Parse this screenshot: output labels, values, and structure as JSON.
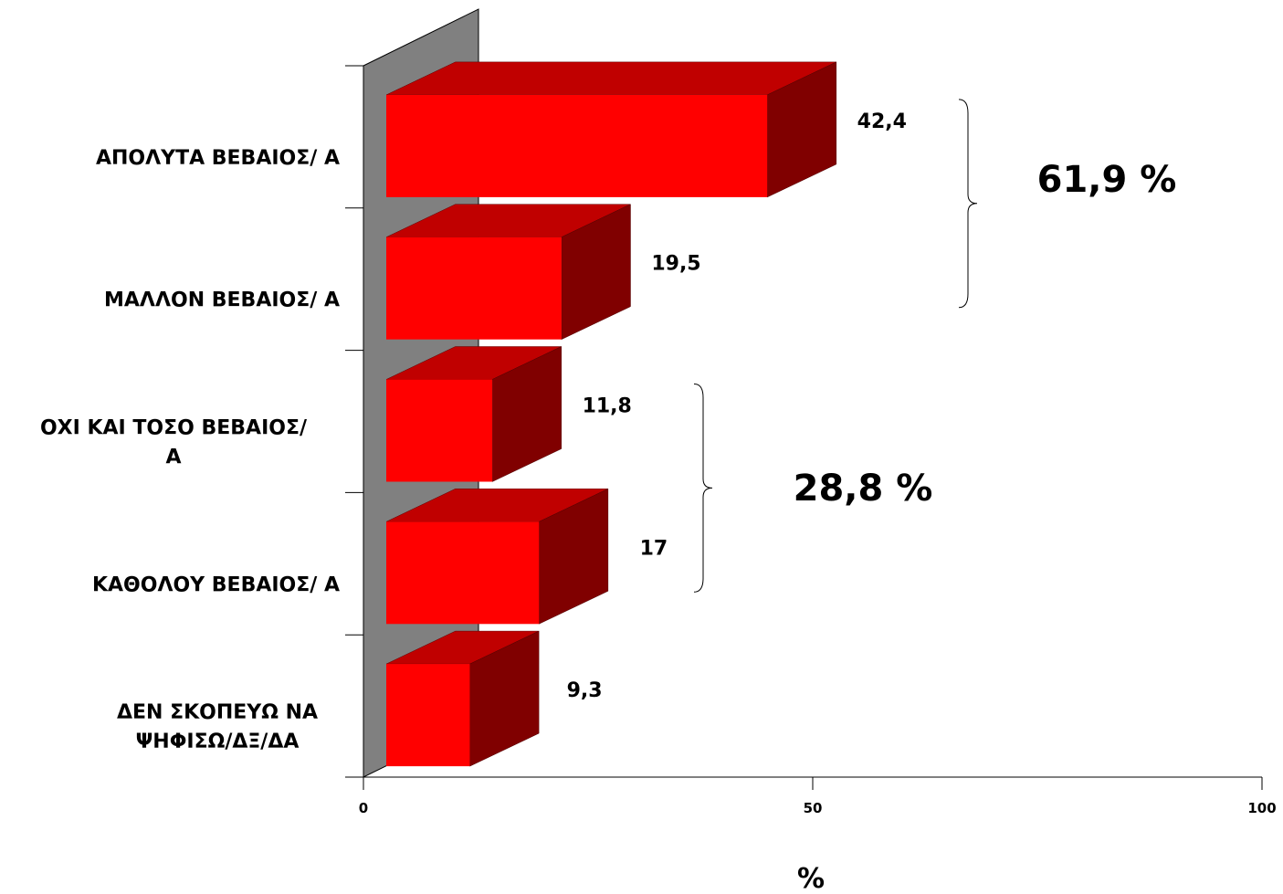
{
  "chart_data": {
    "type": "bar",
    "orientation": "horizontal",
    "style": "3d",
    "categories": [
      [
        "ΑΠΟΛΥΤΑ ΒΕΒΑΙΟΣ/ Α"
      ],
      [
        "ΜΑΛΛΟΝ ΒΕΒΑΙΟΣ/ Α"
      ],
      [
        "ΟΧΙ ΚΑΙ ΤΟΣΟ ΒΕΒΑΙΟΣ/",
        "Α"
      ],
      [
        "ΚΑΘΟΛΟΥ ΒΕΒΑΙΟΣ/ Α"
      ],
      [
        "ΔΕΝ ΣΚΟΠΕΥΩ ΝΑ",
        "ΨΗΦΙΣΩ/ΔΞ/ΔΑ"
      ]
    ],
    "values": [
      42.4,
      19.5,
      11.8,
      17,
      9.3
    ],
    "value_labels": [
      "42,4",
      "19,5",
      "11,8",
      "17",
      "9,3"
    ],
    "xlim": [
      0,
      100
    ],
    "xticks": [
      0,
      50,
      100
    ],
    "xtick_labels": [
      "0",
      "50",
      "100"
    ],
    "xlabel": "%",
    "ylabel": "",
    "title": "",
    "grid": false,
    "legend": "none",
    "groups": [
      {
        "label": "61,9 %",
        "from": 0,
        "to": 1
      },
      {
        "label": "28,8 %",
        "from": 2,
        "to": 3
      }
    ],
    "colors": {
      "bar_front": "#ff0000",
      "bar_top": "#c00000",
      "bar_side": "#800000",
      "wall": "#808080"
    }
  }
}
